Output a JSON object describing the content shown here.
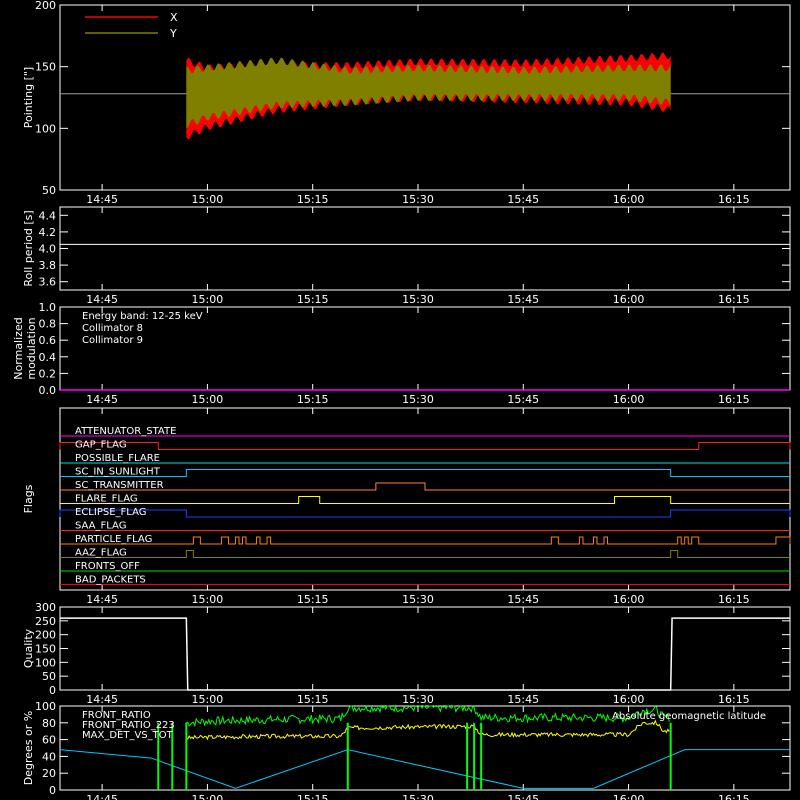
{
  "x_ticks": [
    "14:45",
    "15:00",
    "15:15",
    "15:30",
    "15:45",
    "16:00",
    "16:15"
  ],
  "chart_data": [
    {
      "type": "line",
      "ylabel": "Pointing [\"]",
      "ylim": [
        50,
        200
      ],
      "yticks": [
        "50",
        "100",
        "150",
        "200"
      ],
      "xlim": [
        "14:39",
        "16:23"
      ],
      "legend": [
        {
          "name": "X",
          "color": "#ff0000"
        },
        {
          "name": "Y",
          "color": "#808000"
        }
      ],
      "reference_line": 128,
      "data_start": "14:57",
      "data_end": "16:06",
      "envelope_x": {
        "t": [
          "14:57",
          "15:00",
          "15:10",
          "15:20",
          "15:30",
          "15:45",
          "16:00",
          "16:06"
        ],
        "hi": [
          158,
          152,
          154,
          154,
          157,
          156,
          160,
          162
        ],
        "lo": [
          90,
          98,
          112,
          118,
          122,
          120,
          118,
          112
        ]
      },
      "envelope_y": {
        "t": [
          "14:57",
          "15:00",
          "15:10",
          "15:20",
          "15:30",
          "15:45",
          "16:00",
          "16:06"
        ],
        "hi": [
          150,
          152,
          158,
          150,
          152,
          150,
          152,
          152
        ],
        "lo": [
          100,
          106,
          116,
          118,
          122,
          122,
          122,
          118
        ]
      }
    },
    {
      "type": "line",
      "ylabel": "Roll period [s]",
      "ylim": [
        3.5,
        4.5
      ],
      "yticks": [
        "3.6",
        "3.8",
        "4.0",
        "4.2",
        "4.4"
      ],
      "xlim": [
        "14:39",
        "16:23"
      ],
      "series": [
        {
          "values": [
            4.05,
            4.05
          ],
          "x": [
            "14:39",
            "16:23"
          ]
        }
      ]
    },
    {
      "type": "line",
      "ylabel": "Normalized modulation",
      "ylim": [
        0,
        1
      ],
      "yticks": [
        "0.0",
        "0.2",
        "0.4",
        "0.6",
        "0.8",
        "1.0"
      ],
      "xlim": [
        "14:39",
        "16:23"
      ],
      "annotations": [
        "Energy band: 12-25 keV",
        "Collimator 8",
        "Collimator 9"
      ],
      "annotation_colors": [
        "#ffffff",
        "#00ffff",
        "#ff00ff"
      ],
      "series": [
        {
          "values": [
            0,
            0
          ],
          "x": [
            "14:39",
            "16:23"
          ],
          "color": "#ff00ff"
        }
      ]
    },
    {
      "type": "line",
      "ylabel": "Flags",
      "xlim": [
        "14:39",
        "16:23"
      ],
      "flags": [
        {
          "name": "ATTENUATOR_STATE",
          "color": "#ff00ff",
          "intervals": []
        },
        {
          "name": "GAP_FLAG",
          "color": "#ff2020",
          "intervals": [
            [
              "14:39",
              "14:53"
            ],
            [
              "16:10",
              "16:23"
            ]
          ]
        },
        {
          "name": "POSSIBLE_FLARE",
          "color": "#00e0e0",
          "intervals": []
        },
        {
          "name": "SC_IN_SUNLIGHT",
          "color": "#00c8ff",
          "intervals": [
            [
              "14:57",
              "16:06"
            ]
          ]
        },
        {
          "name": "SC_TRANSMITTER",
          "color": "#ff8040",
          "intervals": [
            [
              "15:24",
              "15:31"
            ]
          ]
        },
        {
          "name": "FLARE_FLAG",
          "color": "#ffff00",
          "intervals": [
            [
              "15:13",
              "15:16"
            ],
            [
              "15:58",
              "16:06"
            ]
          ]
        },
        {
          "name": "ECLIPSE_FLAG",
          "color": "#2040ff",
          "intervals": [
            [
              "14:39",
              "14:57"
            ],
            [
              "16:06",
              "16:23"
            ]
          ]
        },
        {
          "name": "SAA_FLAG",
          "color": "#ff2020",
          "intervals": []
        },
        {
          "name": "PARTICLE_FLAG",
          "color": "#ff8000",
          "intervals": [
            [
              "14:58",
              "14:59"
            ],
            [
              "15:02",
              "15:03"
            ],
            [
              "15:04",
              "15:04.5"
            ],
            [
              "15:05",
              "15:05.5"
            ],
            [
              "15:07",
              "15:07.5"
            ],
            [
              "15:08.5",
              "15:09"
            ],
            [
              "15:49",
              "15:50"
            ],
            [
              "15:53",
              "15:53.5"
            ],
            [
              "15:55",
              "15:55.5"
            ],
            [
              "15:56.5",
              "15:57"
            ],
            [
              "16:07",
              "16:07.5"
            ],
            [
              "16:08",
              "16:08.5"
            ],
            [
              "16:09",
              "16:10"
            ],
            [
              "16:21",
              "16:23"
            ]
          ]
        },
        {
          "name": "AAZ_FLAG",
          "color": "#808000",
          "intervals": [
            [
              "14:57",
              "14:58"
            ],
            [
              "16:06",
              "16:07"
            ]
          ]
        },
        {
          "name": "FRONTS_OFF",
          "color": "#00e000",
          "intervals": []
        },
        {
          "name": "BAD_PACKETS",
          "color": "#ff0000",
          "intervals": []
        }
      ]
    },
    {
      "type": "line",
      "ylabel": "Quality",
      "ylim": [
        0,
        300
      ],
      "yticks": [
        "0",
        "50",
        "100",
        "150",
        "200",
        "250",
        "300"
      ],
      "xlim": [
        "14:39",
        "16:23"
      ],
      "series": [
        {
          "x": [
            "14:39",
            "14:57",
            "14:57.2",
            "16:06",
            "16:06.2",
            "16:23"
          ],
          "values": [
            260,
            260,
            0,
            0,
            260,
            260
          ],
          "color": "#ffffff"
        }
      ]
    },
    {
      "type": "line",
      "ylabel": "Degrees or %",
      "ylim": [
        0,
        100
      ],
      "yticks": [
        "0",
        "20",
        "40",
        "60",
        "80",
        "100"
      ],
      "xlim": [
        "14:39",
        "16:23"
      ],
      "legend": [
        {
          "name": "FRONT_RATIO",
          "color": "#ffff00"
        },
        {
          "name": "FRONT_RATIO_223",
          "color": "#00ff00"
        },
        {
          "name": "MAX_DET_VS_TOT",
          "color": "#ff8000"
        }
      ],
      "right_label": "Absolute geomagnetic latitude",
      "right_label_color": "#00c8ff",
      "series": [
        {
          "name": "FRONT_RATIO",
          "color": "#ffff00",
          "x": [
            "14:57",
            "15:00",
            "15:10",
            "15:19",
            "15:20",
            "15:38",
            "15:39",
            "16:00",
            "16:02",
            "16:04",
            "16:05",
            "16:06"
          ],
          "values": [
            62,
            63,
            64,
            64,
            74,
            76,
            66,
            66,
            80,
            80,
            70,
            70
          ]
        },
        {
          "name": "FRONT_RATIO_223",
          "color": "#00ff00",
          "x": [
            "14:57",
            "15:00",
            "15:10",
            "15:19",
            "15:20",
            "15:38",
            "15:39",
            "16:00",
            "16:02",
            "16:04",
            "16:05",
            "16:06"
          ],
          "values": [
            80,
            82,
            84,
            85,
            98,
            98,
            86,
            86,
            95,
            95,
            86,
            86
          ]
        },
        {
          "name": "latitude",
          "color": "#00c8ff",
          "x": [
            "14:39",
            "14:52",
            "15:04",
            "15:20",
            "15:45",
            "15:55",
            "16:08",
            "16:23"
          ],
          "values": [
            48,
            38,
            2,
            48,
            2,
            2,
            48,
            48
          ]
        }
      ]
    }
  ]
}
